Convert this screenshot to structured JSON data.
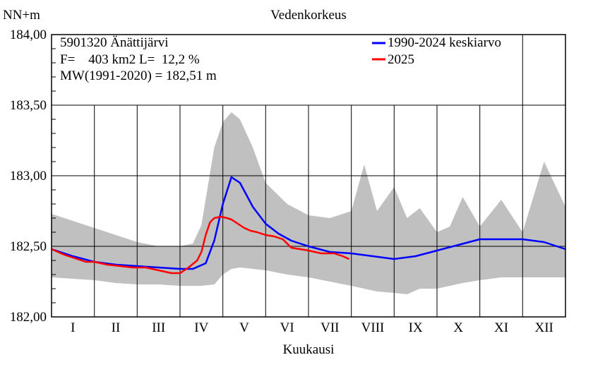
{
  "chart_data": {
    "type": "line",
    "title": "Vedenkorkeus",
    "ylabel": "NN+m",
    "xlabel": "Kuukausi",
    "ylim": [
      182.0,
      184.0
    ],
    "yticks": [
      "182,00",
      "182,50",
      "183,00",
      "183,50",
      "184,00"
    ],
    "ytick_values": [
      182.0,
      182.5,
      183.0,
      183.5,
      184.0
    ],
    "xlim": [
      0,
      12
    ],
    "months": [
      "I",
      "II",
      "III",
      "IV",
      "V",
      "VI",
      "VII",
      "VIII",
      "IX",
      "X",
      "XI",
      "XII"
    ],
    "grid": true,
    "info": {
      "line1": "5901320 Änättijärvi",
      "line2": "F=    403 km2 L=  12,2 %",
      "line3": "MW(1991-2020) = 182,51 m"
    },
    "legend_position": "top-right",
    "band": {
      "color": "#c0c0c0",
      "x": [
        0,
        0.5,
        1,
        1.5,
        2,
        2.5,
        3,
        3.3,
        3.5,
        3.8,
        4.0,
        4.2,
        4.4,
        4.7,
        5,
        5.5,
        6,
        6.5,
        7,
        7.3,
        7.6,
        8,
        8.3,
        8.6,
        9,
        9.3,
        9.6,
        10,
        10.5,
        11,
        11.5,
        12
      ],
      "upper": [
        182.73,
        182.68,
        182.63,
        182.58,
        182.53,
        182.5,
        182.5,
        182.52,
        182.65,
        183.2,
        183.38,
        183.45,
        183.4,
        183.2,
        182.95,
        182.8,
        182.72,
        182.7,
        182.75,
        183.08,
        182.75,
        182.92,
        182.7,
        182.77,
        182.6,
        182.64,
        182.85,
        182.64,
        182.83,
        182.6,
        183.1,
        182.78
      ],
      "lower": [
        182.28,
        182.27,
        182.26,
        182.24,
        182.23,
        182.23,
        182.22,
        182.22,
        182.22,
        182.23,
        182.3,
        182.34,
        182.35,
        182.34,
        182.33,
        182.3,
        182.28,
        182.25,
        182.22,
        182.2,
        182.18,
        182.17,
        182.16,
        182.2,
        182.2,
        182.22,
        182.24,
        182.26,
        182.28,
        182.28,
        182.28,
        182.28
      ]
    },
    "series": [
      {
        "name": "1990-2024 keskiarvo",
        "color": "#0000ff",
        "x": [
          0,
          0.5,
          1,
          1.5,
          2,
          2.5,
          3,
          3.3,
          3.6,
          3.8,
          4.0,
          4.2,
          4.4,
          4.7,
          5,
          5.3,
          5.6,
          6,
          6.5,
          7,
          7.5,
          8,
          8.5,
          9,
          9.5,
          10,
          10.5,
          11,
          11.5,
          12
        ],
        "y": [
          182.48,
          182.43,
          182.39,
          182.37,
          182.36,
          182.35,
          182.34,
          182.34,
          182.38,
          182.54,
          182.8,
          182.99,
          182.95,
          182.78,
          182.66,
          182.59,
          182.54,
          182.5,
          182.46,
          182.45,
          182.43,
          182.41,
          182.43,
          182.47,
          182.51,
          182.55,
          182.55,
          182.55,
          182.53,
          182.48
        ]
      },
      {
        "name": "2025",
        "color": "#ff0000",
        "x": [
          0,
          0.3,
          0.6,
          0.8,
          1.0,
          1.3,
          1.6,
          1.9,
          2.2,
          2.5,
          2.8,
          3.0,
          3.2,
          3.4,
          3.5,
          3.6,
          3.7,
          3.8,
          3.95,
          4.1,
          4.2,
          4.35,
          4.5,
          4.65,
          4.8,
          5.0,
          5.2,
          5.4,
          5.6,
          5.8,
          6.0,
          6.3,
          6.6,
          6.8,
          6.95
        ],
        "y": [
          182.48,
          182.44,
          182.41,
          182.39,
          182.39,
          182.37,
          182.36,
          182.35,
          182.35,
          182.33,
          182.31,
          182.31,
          182.35,
          182.4,
          182.46,
          182.58,
          182.67,
          182.7,
          182.71,
          182.7,
          182.69,
          182.66,
          182.63,
          182.61,
          182.6,
          182.58,
          182.57,
          182.55,
          182.49,
          182.48,
          182.47,
          182.45,
          182.45,
          182.43,
          182.41
        ]
      }
    ]
  }
}
